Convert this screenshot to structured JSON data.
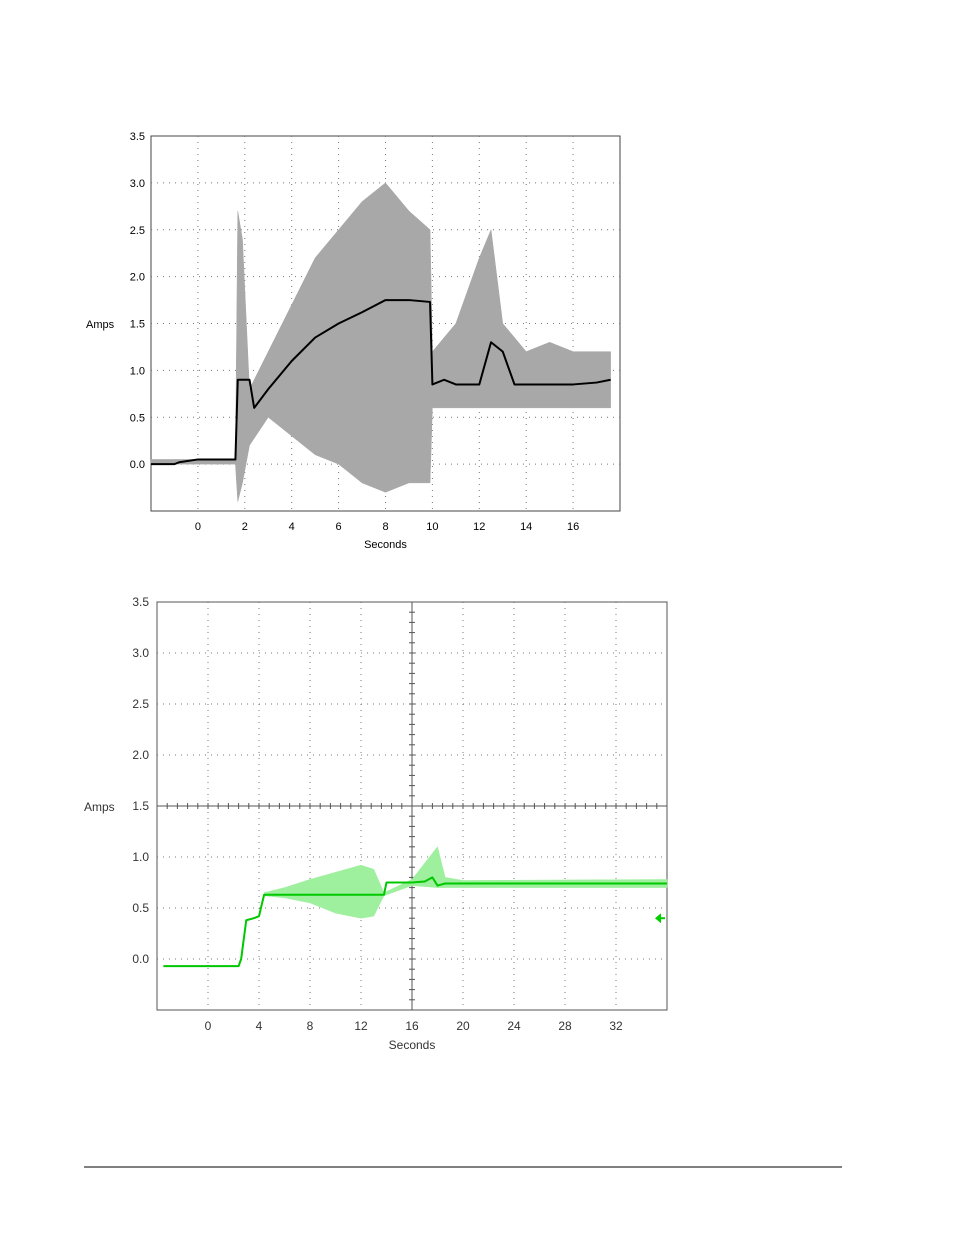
{
  "chart_data": [
    {
      "type": "line",
      "xlabel": "Seconds",
      "ylabel": "Amps",
      "xlim": [
        -2,
        18
      ],
      "ylim": [
        -0.5,
        3.5
      ],
      "x_ticks": [
        0,
        2,
        4,
        6,
        8,
        10,
        12,
        14,
        16
      ],
      "y_ticks": [
        0.0,
        0.5,
        1.0,
        1.5,
        2.0,
        2.5,
        3.0,
        3.5
      ],
      "x_tick_labels": [
        "0",
        "2",
        "4",
        "6",
        "8",
        "10",
        "12",
        "14",
        "16"
      ],
      "y_tick_labels": [
        "0.0",
        "0.5",
        "1.0",
        "1.5",
        "2.0",
        "2.5",
        "3.0",
        "3.5"
      ],
      "grid": true,
      "colors": {
        "envelope": "#a8a8a8",
        "trace": "#000000"
      },
      "series": [
        {
          "role": "envelope",
          "x": [
            -2,
            -1.0,
            1.6,
            1.7,
            1.9,
            2.2,
            3,
            4,
            5,
            6,
            7,
            8,
            9,
            9.9,
            10.0,
            11,
            12,
            12.5,
            13,
            14,
            15,
            16,
            17,
            17.6
          ],
          "low": [
            0.0,
            0.0,
            0.0,
            -0.4,
            -0.2,
            0.2,
            0.5,
            0.3,
            0.1,
            0.0,
            -0.2,
            -0.3,
            -0.2,
            -0.2,
            0.6,
            0.6,
            0.6,
            0.6,
            0.6,
            0.6,
            0.6,
            0.6,
            0.6,
            0.6
          ],
          "high": [
            0.05,
            0.05,
            0.05,
            2.7,
            2.4,
            0.8,
            1.2,
            1.7,
            2.2,
            2.5,
            2.8,
            3.0,
            2.7,
            2.5,
            1.2,
            1.5,
            2.2,
            2.5,
            1.5,
            1.2,
            1.3,
            1.2,
            1.2,
            1.2
          ]
        },
        {
          "role": "trace",
          "x": [
            -2,
            -1.0,
            -0.8,
            0.0,
            0.6,
            1.6,
            1.7,
            2.2,
            2.4,
            3,
            4,
            5,
            6,
            7,
            8,
            9,
            9.9,
            10.0,
            10.5,
            11,
            11.5,
            12,
            12.5,
            13,
            13.5,
            14,
            15,
            16,
            17,
            17.6
          ],
          "y": [
            0.0,
            0.0,
            0.02,
            0.05,
            0.05,
            0.05,
            0.9,
            0.9,
            0.6,
            0.8,
            1.1,
            1.35,
            1.5,
            1.62,
            1.75,
            1.75,
            1.73,
            0.85,
            0.9,
            0.85,
            0.85,
            0.85,
            1.3,
            1.2,
            0.85,
            0.85,
            0.85,
            0.85,
            0.87,
            0.9
          ]
        }
      ]
    },
    {
      "type": "line",
      "xlabel": "Seconds",
      "ylabel": "Amps",
      "xlim": [
        -4,
        36
      ],
      "ylim": [
        -0.5,
        3.5
      ],
      "x_ticks": [
        0,
        4,
        8,
        12,
        16,
        20,
        24,
        28,
        32
      ],
      "y_ticks": [
        0.0,
        0.5,
        1.0,
        1.5,
        2.0,
        2.5,
        3.0,
        3.5
      ],
      "x_tick_labels": [
        "0",
        "4",
        "8",
        "12",
        "16",
        "20",
        "24",
        "28",
        "32"
      ],
      "y_tick_labels": [
        "0.0",
        "0.5",
        "1.0",
        "1.5",
        "2.0",
        "2.5",
        "3.0",
        "3.5"
      ],
      "grid": true,
      "colors": {
        "envelope": "#9ef09e",
        "trace": "#00c800",
        "marker": "#00d000"
      },
      "series": [
        {
          "role": "envelope",
          "x": [
            4.4,
            6,
            8,
            10,
            12,
            13,
            13.8,
            16,
            18,
            18.6,
            20,
            36
          ],
          "low": [
            0.62,
            0.6,
            0.55,
            0.45,
            0.4,
            0.42,
            0.62,
            0.72,
            0.7,
            0.7,
            0.7,
            0.7
          ],
          "high": [
            0.65,
            0.7,
            0.78,
            0.85,
            0.92,
            0.88,
            0.65,
            0.78,
            1.1,
            0.8,
            0.77,
            0.78
          ]
        },
        {
          "role": "trace",
          "x": [
            -3.5,
            2.4,
            2.6,
            3.0,
            3.6,
            4.0,
            4.4,
            6,
            8,
            10,
            13.8,
            14,
            16,
            17,
            17.6,
            18.0,
            18.6,
            20,
            36
          ],
          "y": [
            -0.07,
            -0.07,
            0.0,
            0.38,
            0.4,
            0.42,
            0.63,
            0.63,
            0.63,
            0.63,
            0.63,
            0.75,
            0.75,
            0.76,
            0.8,
            0.72,
            0.74,
            0.74,
            0.74
          ]
        }
      ]
    }
  ]
}
